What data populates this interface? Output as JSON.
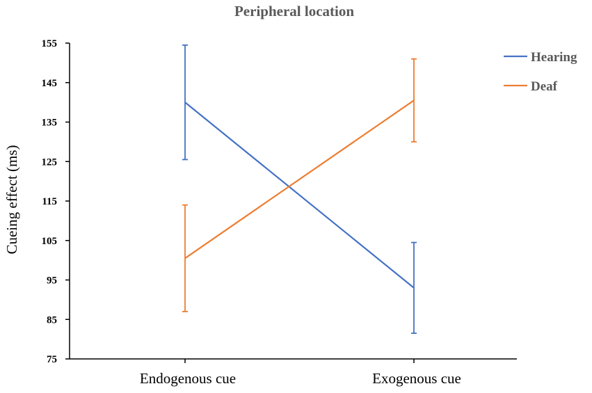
{
  "chart_data": {
    "type": "line",
    "title": "Peripheral location",
    "ylabel": "Cueing effect (ms)",
    "xlabel": "",
    "categories": [
      "Endogenous cue",
      "Exogenous cue"
    ],
    "ylim": [
      75,
      155
    ],
    "yticks": [
      75,
      85,
      95,
      105,
      115,
      125,
      135,
      145,
      155
    ],
    "grid": false,
    "legend_position": "top-right",
    "series": [
      {
        "name": "Hearing",
        "color": "#4472C4",
        "values": [
          140.0,
          93.0
        ],
        "error": [
          14.5,
          11.5
        ]
      },
      {
        "name": "Deaf",
        "color": "#ED7D31",
        "values": [
          100.5,
          140.5
        ],
        "error": [
          13.5,
          10.5
        ]
      }
    ]
  }
}
